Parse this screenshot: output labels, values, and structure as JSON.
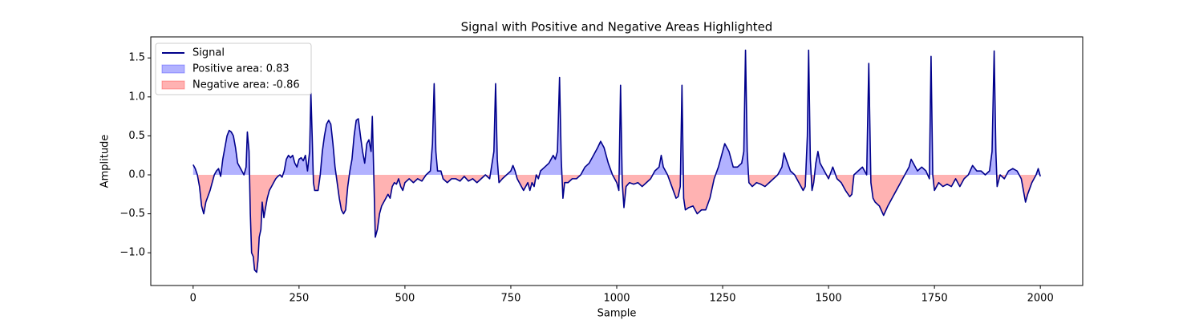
{
  "chart_data": {
    "type": "line",
    "title": "Signal with Positive and Negative Areas Highlighted",
    "x_label": "Sample",
    "y_label": "Amplitude",
    "x": [
      0,
      5,
      10,
      15,
      20,
      25,
      30,
      40,
      45,
      50,
      55,
      60,
      65,
      70,
      75,
      80,
      85,
      90,
      95,
      100,
      105,
      110,
      115,
      120,
      125,
      128,
      132,
      135,
      138,
      142,
      145,
      150,
      153,
      156,
      160,
      163,
      167,
      170,
      175,
      180,
      185,
      190,
      195,
      200,
      205,
      210,
      215,
      220,
      225,
      230,
      235,
      240,
      245,
      250,
      255,
      260,
      265,
      270,
      275,
      278,
      281,
      284,
      287,
      290,
      295,
      300,
      305,
      310,
      315,
      320,
      325,
      330,
      335,
      340,
      345,
      350,
      355,
      360,
      365,
      370,
      375,
      380,
      385,
      390,
      395,
      400,
      405,
      410,
      415,
      420,
      423,
      426,
      430,
      435,
      440,
      445,
      450,
      455,
      460,
      465,
      470,
      475,
      480,
      485,
      490,
      495,
      500,
      510,
      520,
      530,
      540,
      550,
      560,
      565,
      569,
      573,
      577,
      585,
      590,
      600,
      610,
      620,
      630,
      640,
      650,
      660,
      670,
      680,
      690,
      700,
      710,
      714,
      718,
      722,
      730,
      740,
      750,
      755,
      760,
      765,
      770,
      775,
      780,
      785,
      790,
      795,
      800,
      805,
      810,
      815,
      820,
      830,
      840,
      850,
      855,
      860,
      865,
      869,
      873,
      877,
      885,
      895,
      905,
      915,
      925,
      935,
      945,
      955,
      962,
      970,
      980,
      990,
      1000,
      1005,
      1009,
      1013,
      1017,
      1022,
      1030,
      1040,
      1050,
      1060,
      1070,
      1080,
      1090,
      1100,
      1105,
      1110,
      1120,
      1130,
      1140,
      1145,
      1150,
      1154,
      1158,
      1162,
      1170,
      1180,
      1190,
      1200,
      1210,
      1220,
      1230,
      1240,
      1250,
      1255,
      1265,
      1275,
      1285,
      1295,
      1300,
      1304,
      1308,
      1312,
      1320,
      1330,
      1340,
      1350,
      1360,
      1370,
      1380,
      1390,
      1395,
      1400,
      1410,
      1420,
      1430,
      1440,
      1445,
      1450,
      1453,
      1457,
      1461,
      1465,
      1470,
      1475,
      1480,
      1490,
      1500,
      1510,
      1520,
      1530,
      1540,
      1550,
      1555,
      1560,
      1570,
      1580,
      1590,
      1595,
      1600,
      1605,
      1610,
      1620,
      1630,
      1640,
      1650,
      1660,
      1670,
      1680,
      1690,
      1695,
      1700,
      1710,
      1720,
      1730,
      1738,
      1742,
      1746,
      1750,
      1760,
      1770,
      1780,
      1790,
      1800,
      1810,
      1820,
      1830,
      1840,
      1850,
      1860,
      1870,
      1880,
      1886,
      1891,
      1895,
      1898,
      1905,
      1915,
      1925,
      1935,
      1945,
      1955,
      1960,
      1965,
      1970,
      1980,
      1990,
      1995,
      2000
    ],
    "series": [
      {
        "name": "Signal",
        "color": "#00008b",
        "values": [
          0.13,
          0.08,
          0,
          -0.15,
          -0.4,
          -0.5,
          -0.35,
          -0.2,
          -0.1,
          0,
          0.05,
          0.08,
          -0.02,
          0.2,
          0.35,
          0.5,
          0.57,
          0.55,
          0.5,
          0.35,
          0.15,
          0.1,
          0.05,
          0,
          0.1,
          0.55,
          0.3,
          -0.5,
          -1.0,
          -1.05,
          -1.22,
          -1.25,
          -1.1,
          -0.8,
          -0.7,
          -0.35,
          -0.55,
          -0.45,
          -0.3,
          -0.2,
          -0.15,
          -0.1,
          -0.05,
          -0.02,
          0,
          -0.03,
          0.05,
          0.2,
          0.25,
          0.22,
          0.25,
          0.15,
          0.1,
          0.2,
          0.22,
          0.18,
          0.25,
          0.05,
          0.3,
          1.05,
          0.5,
          -0.1,
          -0.2,
          -0.2,
          -0.2,
          0,
          0.3,
          0.5,
          0.65,
          0.7,
          0.65,
          0.4,
          0.1,
          -0.1,
          -0.3,
          -0.45,
          -0.5,
          -0.45,
          -0.15,
          0.05,
          0.2,
          0.5,
          0.7,
          0.72,
          0.5,
          0.3,
          0.15,
          0.4,
          0.45,
          0.3,
          0.75,
          0.1,
          -0.8,
          -0.7,
          -0.5,
          -0.4,
          -0.35,
          -0.3,
          -0.25,
          -0.3,
          -0.15,
          -0.1,
          -0.12,
          -0.05,
          -0.15,
          -0.2,
          -0.1,
          -0.05,
          -0.1,
          -0.05,
          -0.08,
          0,
          0.05,
          0.4,
          1.17,
          0.3,
          0.05,
          0.05,
          -0.05,
          -0.1,
          -0.05,
          -0.05,
          -0.08,
          -0.02,
          -0.08,
          -0.05,
          -0.1,
          -0.05,
          0,
          -0.05,
          0.3,
          1.17,
          0.2,
          -0.1,
          -0.05,
          0,
          0.05,
          0.12,
          0.05,
          -0.05,
          -0.1,
          -0.15,
          -0.2,
          -0.15,
          -0.1,
          -0.2,
          -0.1,
          -0.15,
          0,
          -0.05,
          0.05,
          0.1,
          0.15,
          0.25,
          0.2,
          0.3,
          1.25,
          0.2,
          -0.3,
          -0.1,
          -0.1,
          -0.05,
          -0.05,
          0,
          0.1,
          0.15,
          0.25,
          0.35,
          0.43,
          0.35,
          0.15,
          0,
          -0.1,
          -0.2,
          1.15,
          -0.1,
          -0.42,
          -0.15,
          -0.1,
          -0.12,
          -0.1,
          -0.15,
          -0.1,
          -0.05,
          0.05,
          0.1,
          0.25,
          0.1,
          0,
          -0.15,
          -0.3,
          -0.28,
          -0.15,
          1.15,
          -0.3,
          -0.45,
          -0.42,
          -0.4,
          -0.5,
          -0.45,
          -0.45,
          -0.3,
          -0.05,
          0.1,
          0.3,
          0.4,
          0.3,
          0.1,
          0.1,
          0.15,
          0.3,
          1.6,
          0.3,
          -0.1,
          -0.15,
          -0.1,
          -0.12,
          -0.15,
          -0.1,
          -0.05,
          0,
          0.1,
          0.28,
          0.2,
          0.05,
          0,
          -0.1,
          -0.2,
          -0.15,
          0.5,
          1.6,
          0.2,
          -0.2,
          -0.1,
          0.15,
          0.3,
          0.15,
          0.05,
          -0.05,
          0.1,
          -0.05,
          -0.1,
          -0.2,
          -0.28,
          -0.25,
          0,
          0.05,
          0.1,
          0,
          1.43,
          -0.1,
          -0.3,
          -0.35,
          -0.4,
          -0.52,
          -0.4,
          -0.3,
          -0.2,
          -0.1,
          0,
          0.1,
          0.2,
          0.15,
          0.05,
          0.1,
          0.05,
          -0.05,
          1.52,
          0,
          -0.2,
          -0.1,
          -0.15,
          -0.12,
          -0.15,
          -0.05,
          -0.15,
          -0.05,
          0,
          0.12,
          0.05,
          0.05,
          0,
          0.05,
          0.3,
          1.59,
          0.3,
          -0.15,
          0,
          -0.05,
          0.05,
          0.08,
          0.05,
          -0.05,
          -0.2,
          -0.35,
          -0.25,
          -0.1,
          0,
          0.08,
          -0.02
        ]
      }
    ],
    "fills": [
      {
        "name": "Positive area: 0.83",
        "color": "#0000ff",
        "side": "positive"
      },
      {
        "name": "Negative area: -0.86",
        "color": "#ff0000",
        "side": "negative"
      }
    ],
    "fill_alpha": 0.3,
    "xlim": [
      -100,
      2100
    ],
    "xticks": [
      0,
      250,
      500,
      750,
      1000,
      1250,
      1500,
      1750,
      2000
    ],
    "ylim": [
      -1.42,
      1.77
    ],
    "yticks": [
      {
        "value": -1.0,
        "label": "−1.0"
      },
      {
        "value": -0.5,
        "label": "−0.5"
      },
      {
        "value": 0,
        "label": "0.0"
      },
      {
        "value": 0.5,
        "label": "0.5"
      },
      {
        "value": 1.0,
        "label": "1.0"
      },
      {
        "value": 1.5,
        "label": "1.5"
      }
    ],
    "legend": "upper left"
  }
}
